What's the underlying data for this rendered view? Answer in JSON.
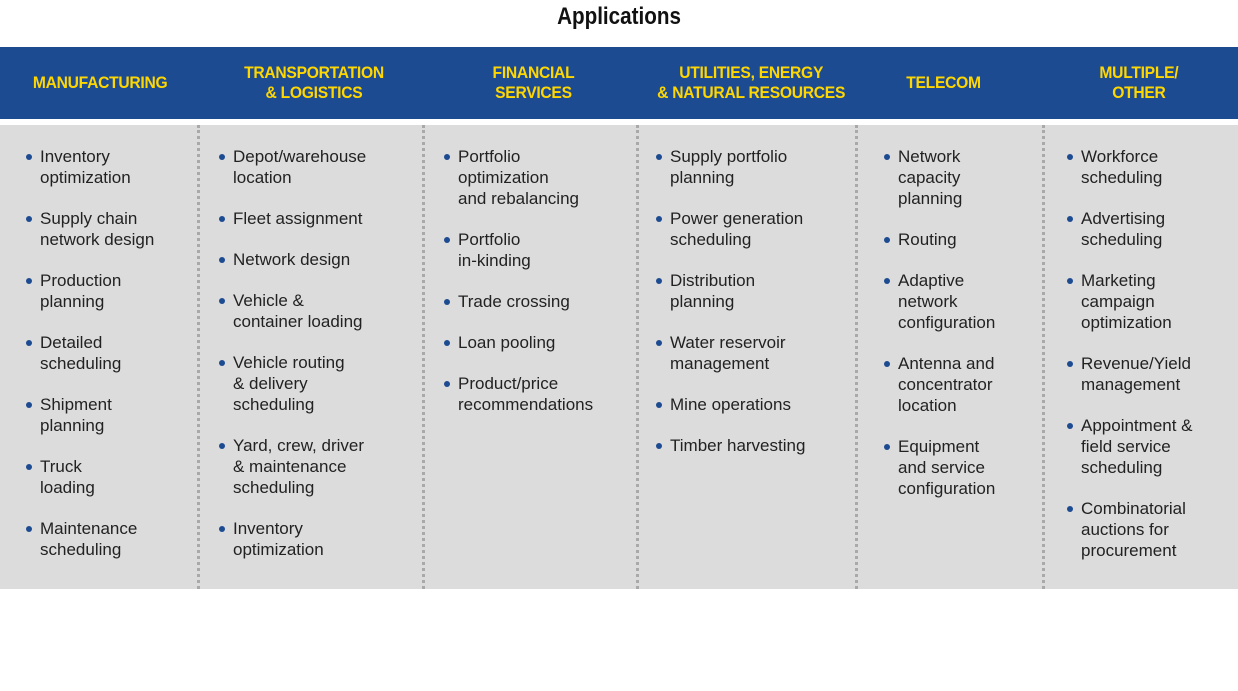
{
  "title": "Applications",
  "colors": {
    "header_bg": "#1d4b92",
    "header_text": "#ffd700",
    "body_bg": "#dcdcdc",
    "bullet": "#1d4b92"
  },
  "columns": [
    {
      "header": "MANUFACTURING",
      "items": [
        "Inventory\noptimization",
        "Supply chain\nnetwork design",
        "Production\nplanning",
        "Detailed\nscheduling",
        "Shipment\nplanning",
        "Truck\nloading",
        "Maintenance\nscheduling"
      ]
    },
    {
      "header": "TRANSPORTATION\n& LOGISTICS",
      "items": [
        "Depot/warehouse\nlocation",
        "Fleet assignment",
        "Network design",
        "Vehicle &\ncontainer loading",
        "Vehicle routing\n& delivery\nscheduling",
        "Yard, crew, driver\n& maintenance\nscheduling",
        "Inventory\noptimization"
      ]
    },
    {
      "header": "FINANCIAL\nSERVICES",
      "items": [
        "Portfolio\noptimization\nand rebalancing",
        "Portfolio\nin-kinding",
        "Trade crossing",
        "Loan pooling",
        "Product/price\nrecommendations"
      ]
    },
    {
      "header": "UTILITIES, ENERGY\n& NATURAL RESOURCES",
      "items": [
        "Supply portfolio\nplanning",
        "Power generation\nscheduling",
        "Distribution\nplanning",
        "Water reservoir\nmanagement",
        "Mine operations",
        "Timber harvesting"
      ]
    },
    {
      "header": "TELECOM",
      "items": [
        "Network\ncapacity\nplanning",
        "Routing",
        "Adaptive\nnetwork\nconfiguration",
        "Antenna and\nconcentrator\nlocation",
        "Equipment\nand service\nconfiguration"
      ]
    },
    {
      "header": "MULTIPLE/\nOTHER",
      "items": [
        "Workforce\nscheduling",
        "Advertising\nscheduling",
        "Marketing\ncampaign\noptimization",
        "Revenue/Yield\nmanagement",
        "Appointment &\nfield service\nscheduling",
        "Combinatorial\nauctions for\nprocurement"
      ]
    }
  ]
}
